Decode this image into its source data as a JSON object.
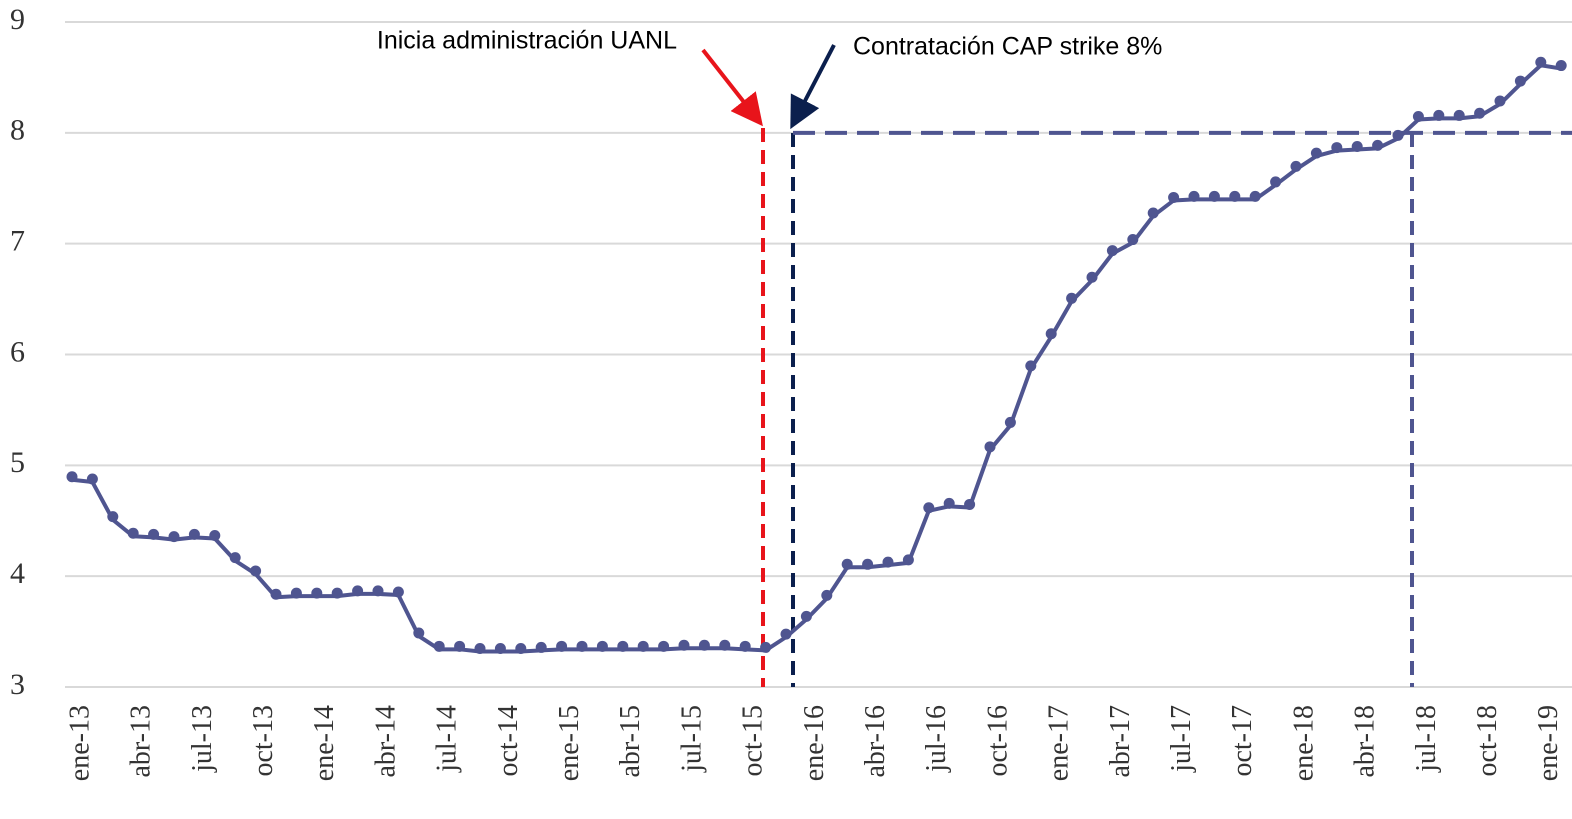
{
  "chart_data": {
    "type": "line",
    "categories": [
      "ene-13",
      null,
      null,
      "abr-13",
      null,
      null,
      "jul-13",
      null,
      null,
      "oct-13",
      null,
      null,
      "ene-14",
      null,
      null,
      "abr-14",
      null,
      null,
      "jul-14",
      null,
      null,
      "oct-14",
      null,
      null,
      "ene-15",
      null,
      null,
      "abr-15",
      null,
      null,
      "jul-15",
      null,
      null,
      "oct-15",
      null,
      null,
      "ene-16",
      null,
      null,
      "abr-16",
      null,
      null,
      "jul-16",
      null,
      null,
      "oct-16",
      null,
      null,
      "ene-17",
      null,
      null,
      "abr-17",
      null,
      null,
      "jul-17",
      null,
      null,
      "oct-17",
      null,
      null,
      "ene-18",
      null,
      null,
      "abr-18",
      null,
      null,
      "jul-18",
      null,
      null,
      "oct-18",
      null,
      null,
      "ene-19",
      null
    ],
    "values": [
      4.87,
      4.85,
      4.51,
      4.36,
      4.35,
      4.33,
      4.35,
      4.34,
      4.14,
      4.02,
      3.81,
      3.82,
      3.82,
      3.82,
      3.84,
      3.84,
      3.83,
      3.46,
      3.34,
      3.34,
      3.32,
      3.32,
      3.32,
      3.33,
      3.34,
      3.34,
      3.34,
      3.34,
      3.34,
      3.34,
      3.35,
      3.35,
      3.35,
      3.34,
      3.33,
      3.45,
      3.61,
      3.8,
      4.08,
      4.08,
      4.1,
      4.12,
      4.59,
      4.63,
      4.62,
      5.14,
      5.36,
      5.87,
      6.16,
      6.48,
      6.67,
      6.91,
      7.01,
      7.25,
      7.39,
      7.4,
      7.4,
      7.4,
      7.4,
      7.53,
      7.67,
      7.79,
      7.84,
      7.85,
      7.86,
      7.95,
      8.12,
      8.13,
      8.13,
      8.15,
      8.26,
      8.44,
      8.61,
      8.58
    ],
    "color": "#4f5590",
    "ylim": [
      3,
      9
    ],
    "yticks": [
      3,
      4,
      5,
      6,
      7,
      8,
      9
    ],
    "grid": true,
    "reference_y": 8,
    "annotations": [
      "Inicia administración UANL",
      "Contratación CAP strike 8%"
    ]
  }
}
